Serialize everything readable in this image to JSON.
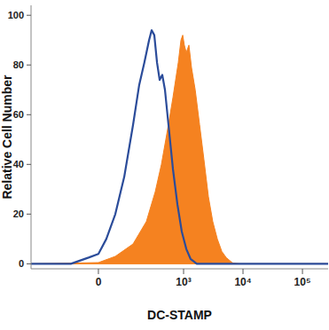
{
  "chart_data": {
    "type": "line",
    "x_label": "DC-STAMP",
    "y_label": "Relative Cell Number",
    "log": "x",
    "grid": false,
    "xlim": [
      -500,
      270000
    ],
    "xticks": [
      0,
      {
        "value": 1000,
        "label": "10³"
      },
      {
        "value": 10000,
        "label": "10⁴"
      },
      {
        "value": 100000,
        "label": "10⁵"
      }
    ],
    "ylim": [
      -2,
      104
    ],
    "yticks": [
      0,
      20,
      40,
      60,
      80,
      100
    ],
    "series": [
      {
        "type": "area",
        "color": "#f58220",
        "x": [
          -500,
          0,
          52,
          132,
          231,
          330,
          421,
          555,
          662,
          734,
          814,
          903,
          967,
          1030,
          1110,
          1230,
          1360,
          1570,
          1860,
          2200,
          2620,
          3100,
          3700,
          4400,
          5220,
          6640,
          8700,
          270000
        ],
        "values": [
          0,
          0.5,
          3,
          8,
          17,
          29,
          40,
          56,
          67,
          74,
          81,
          90,
          92,
          88,
          85,
          88,
          79,
          70,
          56,
          42,
          27,
          17,
          10,
          5,
          2.5,
          0.4,
          0,
          0
        ]
      },
      {
        "type": "line",
        "color": "#2b4c9a",
        "x": [
          -500,
          -95,
          -29,
          0,
          23,
          52,
          87,
          132,
          172,
          213,
          258,
          286,
          318,
          354,
          393,
          436,
          484,
          555,
          662,
          786,
          932,
          1110,
          1310,
          1670,
          2200,
          270000
        ],
        "values": [
          0,
          0,
          2.5,
          4,
          10,
          20,
          35,
          56,
          72,
          81,
          90,
          94,
          92,
          81,
          74,
          76,
          70,
          56,
          38,
          24,
          13,
          6,
          2,
          0,
          0,
          0
        ]
      }
    ]
  }
}
